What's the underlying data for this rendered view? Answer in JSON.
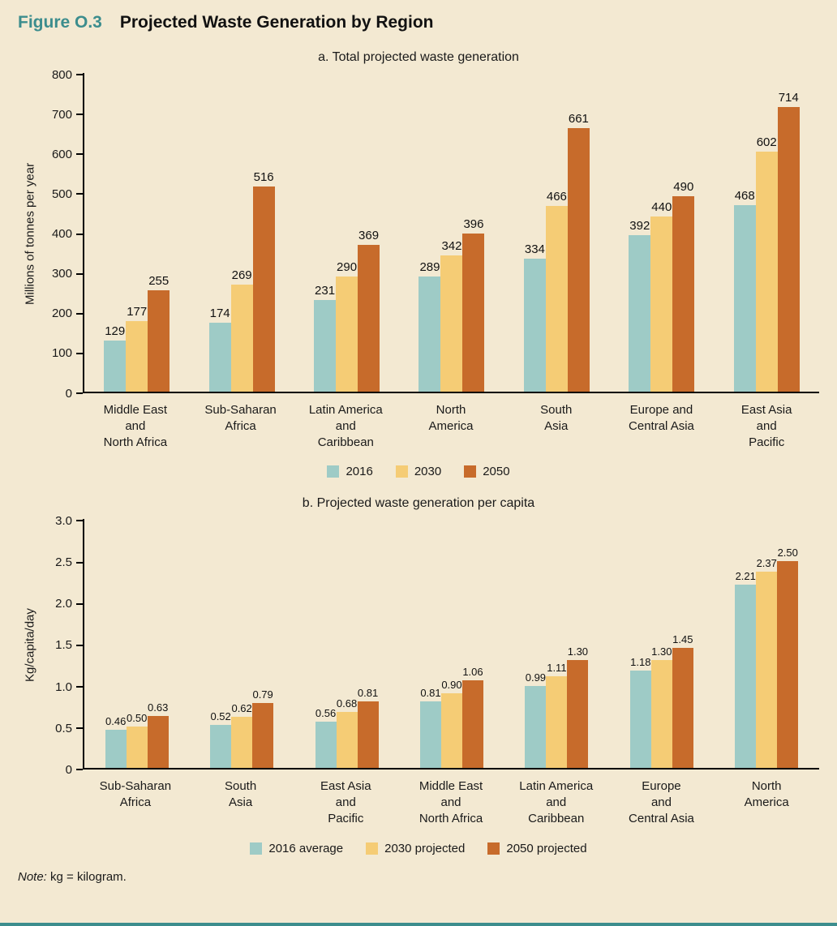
{
  "header": {
    "figure_label": "Figure O.3",
    "figure_title": "Projected Waste Generation by Region"
  },
  "note": {
    "label": "Note:",
    "text": "kg = kilogram."
  },
  "colors": {
    "background": "#f3e9d2",
    "accent_teal": "#3c8d8d",
    "bar_2016": "#9ecbc6",
    "bar_2030": "#f5cc75",
    "bar_2050": "#c76b2b"
  },
  "chart_data": [
    {
      "type": "bar",
      "title": "a. Total projected waste generation",
      "ylabel": "Millions of tonnes per year",
      "xlabel": "",
      "ylim": [
        0,
        800
      ],
      "yticks": [
        0,
        100,
        200,
        300,
        400,
        500,
        600,
        700,
        800
      ],
      "ytick_labels": [
        "0",
        "100",
        "200",
        "300",
        "400",
        "500",
        "600",
        "700",
        "800"
      ],
      "label_decimals": 0,
      "grid": false,
      "legend_position": "bottom",
      "categories": [
        [
          "Middle East",
          "and",
          "North Africa"
        ],
        [
          "Sub-Saharan",
          "Africa"
        ],
        [
          "Latin America",
          "and",
          "Caribbean"
        ],
        [
          "North",
          "America"
        ],
        [
          "South",
          "Asia"
        ],
        [
          "Europe and",
          "Central Asia"
        ],
        [
          "East Asia",
          "and",
          "Pacific"
        ]
      ],
      "series": [
        {
          "name": "2016",
          "color": "#9ecbc6",
          "values": [
            129,
            174,
            231,
            289,
            334,
            392,
            468
          ]
        },
        {
          "name": "2030",
          "color": "#f5cc75",
          "values": [
            177,
            269,
            290,
            342,
            466,
            440,
            602
          ]
        },
        {
          "name": "2050",
          "color": "#c76b2b",
          "values": [
            255,
            516,
            369,
            396,
            661,
            490,
            714
          ]
        }
      ]
    },
    {
      "type": "bar",
      "title": "b. Projected waste generation per capita",
      "ylabel": "Kg/capita/day",
      "xlabel": "",
      "ylim": [
        0,
        3.0
      ],
      "yticks": [
        0,
        0.5,
        1.0,
        1.5,
        2.0,
        2.5,
        3.0
      ],
      "ytick_labels": [
        "0",
        "0.5",
        "1.0",
        "1.5",
        "2.0",
        "2.5",
        "3.0"
      ],
      "label_decimals": 2,
      "grid": false,
      "legend_position": "bottom",
      "categories": [
        [
          "Sub-Saharan",
          "Africa"
        ],
        [
          "South",
          "Asia"
        ],
        [
          "East Asia",
          "and",
          "Pacific"
        ],
        [
          "Middle East",
          "and",
          "North Africa"
        ],
        [
          "Latin America",
          "and",
          "Caribbean"
        ],
        [
          "Europe",
          "and",
          "Central Asia"
        ],
        [
          "North",
          "America"
        ]
      ],
      "series": [
        {
          "name": "2016 average",
          "color": "#9ecbc6",
          "values": [
            0.46,
            0.52,
            0.56,
            0.81,
            0.99,
            1.18,
            2.21
          ]
        },
        {
          "name": "2030 projected",
          "color": "#f5cc75",
          "values": [
            0.5,
            0.62,
            0.68,
            0.9,
            1.11,
            1.3,
            2.37
          ]
        },
        {
          "name": "2050 projected",
          "color": "#c76b2b",
          "values": [
            0.63,
            0.79,
            0.81,
            1.06,
            1.3,
            1.45,
            2.5
          ]
        }
      ]
    }
  ]
}
